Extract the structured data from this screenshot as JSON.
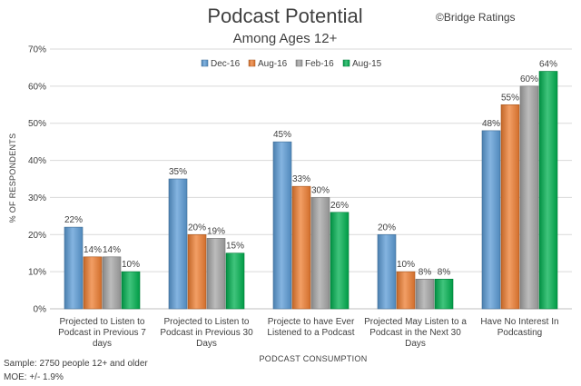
{
  "chart_data": {
    "type": "bar",
    "title": "Podcast Potential",
    "subtitle": "Among Ages 12+",
    "credit": "©Bridge Ratings",
    "xlabel": "PODCAST CONSUMPTION",
    "ylabel": "% OF RESPONDENTS",
    "ylim": [
      0,
      70
    ],
    "yticks": [
      "0%",
      "10%",
      "20%",
      "30%",
      "40%",
      "50%",
      "60%",
      "70%"
    ],
    "legend_position": "top-center",
    "grid": true,
    "categories": [
      [
        "Projected to Listen to",
        "Podcast in Previous 7",
        "days"
      ],
      [
        "Projected to Listen to",
        "Podcast in Previous 30",
        "Days"
      ],
      [
        "Projecte to have Ever",
        "Listened to a Podcast"
      ],
      [
        "Projected May Listen to a",
        "Podcast in the Next 30",
        "Days"
      ],
      [
        "Have No Interest In",
        "Podcasting"
      ]
    ],
    "series": [
      {
        "name": "Dec-16",
        "color": "#5B9BD5",
        "values": [
          22,
          35,
          45,
          20,
          48
        ],
        "labels": [
          "22%",
          "35%",
          "45%",
          "20%",
          "48%"
        ]
      },
      {
        "name": "Aug-16",
        "color": "#ED7D31",
        "values": [
          14,
          20,
          33,
          10,
          55
        ],
        "labels": [
          "14%",
          "20%",
          "33%",
          "10%",
          "55%"
        ]
      },
      {
        "name": "Feb-16",
        "color": "#A5A5A5",
        "values": [
          14,
          19,
          30,
          8,
          60
        ],
        "labels": [
          "14%",
          "19%",
          "30%",
          "8%",
          "60%"
        ]
      },
      {
        "name": "Aug-15",
        "color": "#00B050",
        "values": [
          10,
          15,
          26,
          8,
          64
        ],
        "labels": [
          "10%",
          "15%",
          "26%",
          "8%",
          "64%"
        ]
      }
    ],
    "notes": [
      "Sample: 2750 people 12+ and older",
      "MOE: +/- 1.9%"
    ]
  }
}
